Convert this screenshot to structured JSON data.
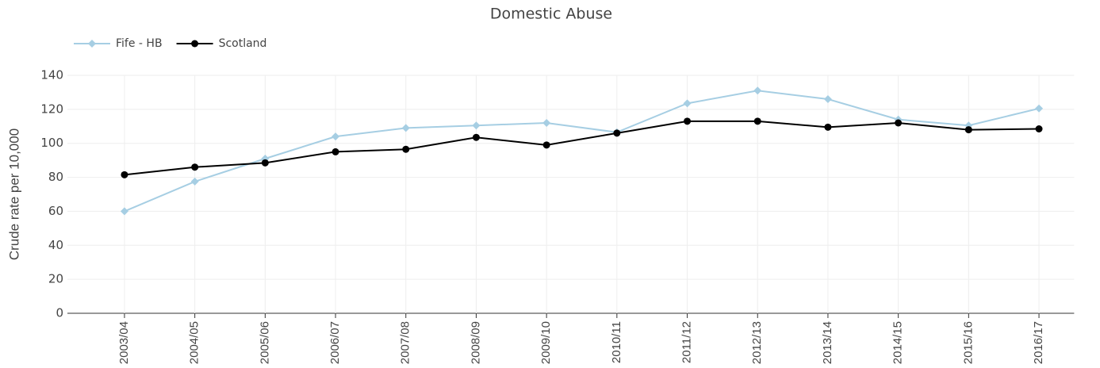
{
  "chart_data": {
    "type": "line",
    "title": "Domestic Abuse",
    "y_label": "Crude rate per 10,000",
    "categories": [
      "2003/04",
      "2004/05",
      "2005/06",
      "2006/07",
      "2007/08",
      "2008/09",
      "2009/10",
      "2010/11",
      "2011/12",
      "2012/13",
      "2013/14",
      "2014/15",
      "2015/16",
      "2016/17"
    ],
    "series": [
      {
        "name": "Fife - HB",
        "color": "#a6cee3",
        "marker": "diamond",
        "values": [
          60,
          77.5,
          91,
          104,
          109,
          110.5,
          112,
          106.5,
          123.5,
          131,
          126,
          114,
          110.5,
          120.5
        ]
      },
      {
        "name": "Scotland",
        "color": "#000000",
        "marker": "circle",
        "values": [
          81.5,
          86,
          88.5,
          95,
          96.5,
          103.5,
          99,
          106,
          113,
          113,
          109.5,
          112,
          108,
          108.5
        ]
      }
    ],
    "ylim": [
      0,
      140
    ],
    "yticks": [
      0,
      20,
      40,
      60,
      80,
      100,
      120,
      140
    ],
    "grid": true,
    "legend": "top-left"
  }
}
